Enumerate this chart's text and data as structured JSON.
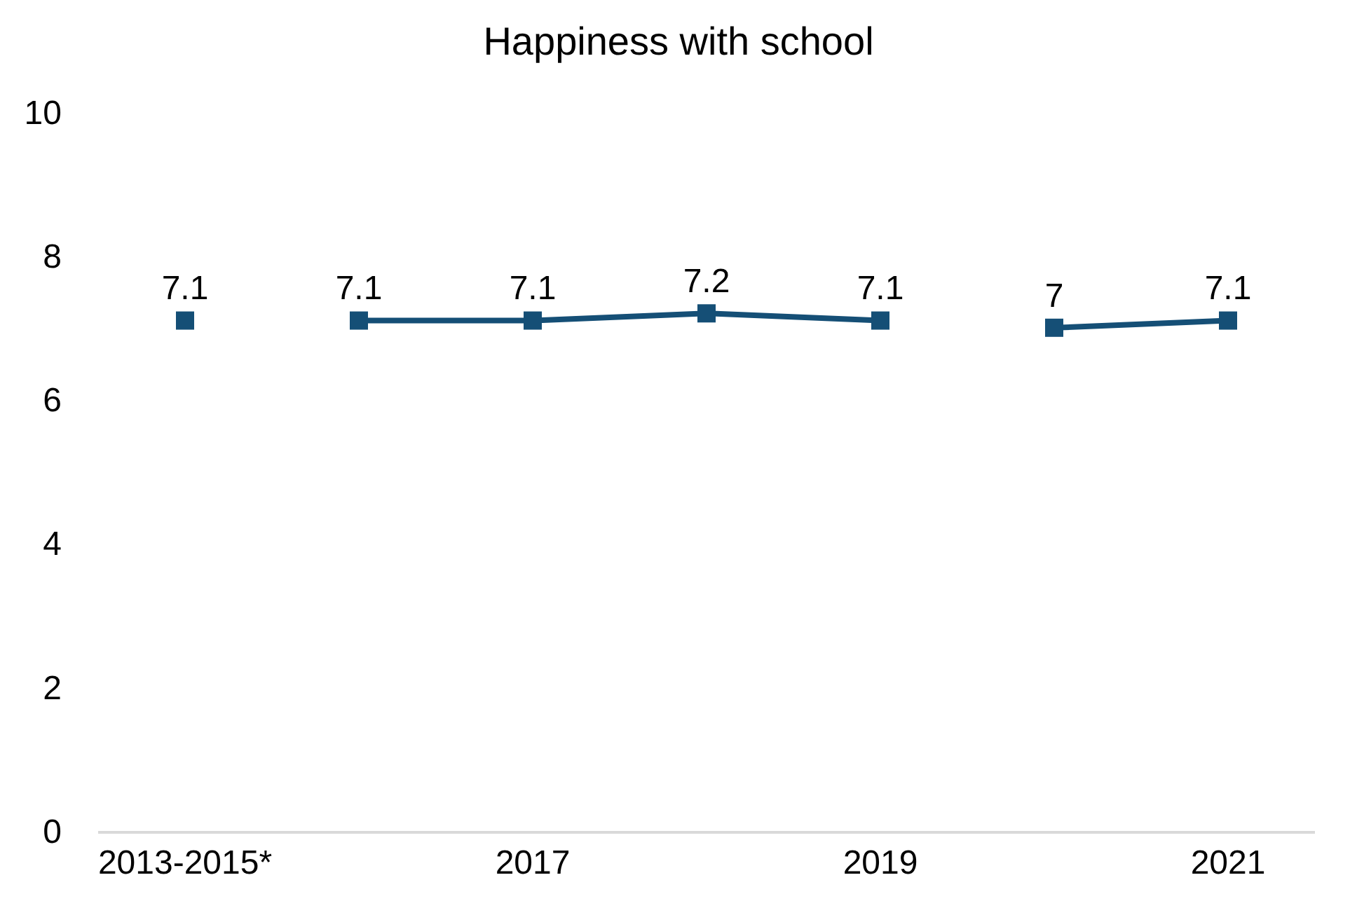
{
  "chart_data": {
    "type": "line",
    "title": "Happiness with school",
    "categories": [
      "2013-2015*",
      null,
      "2017",
      null,
      "2019",
      null,
      "2021"
    ],
    "series": [
      {
        "color": "#154f76",
        "values": [
          7.1,
          null,
          null,
          null,
          null,
          null,
          null
        ]
      },
      {
        "color": "#154f76",
        "values": [
          null,
          7.1,
          7.1,
          7.2,
          7.1,
          null,
          null
        ]
      },
      {
        "color": "#154f76",
        "values": [
          null,
          null,
          null,
          null,
          null,
          7,
          7.1
        ]
      }
    ],
    "ylim": [
      0,
      10
    ],
    "yticks": [
      0,
      2,
      4,
      6,
      8,
      10
    ],
    "grid": false,
    "marker": "square",
    "line_style": "solid",
    "data_labels": true
  }
}
